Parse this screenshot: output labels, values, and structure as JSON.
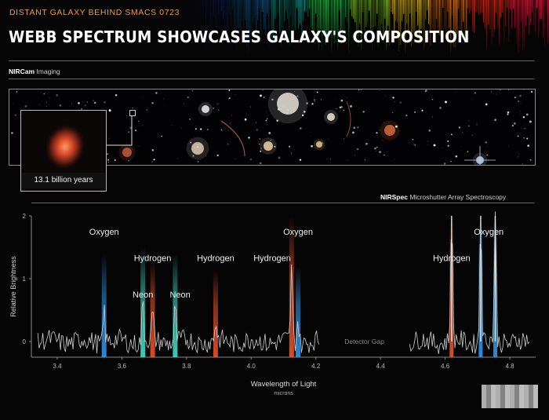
{
  "header": {
    "subtitle": "DISTANT GALAXY BEHIND SMACS 0723",
    "title": "WEBB SPECTRUM SHOWCASES GALAXY'S COMPOSITION"
  },
  "imaging": {
    "label_bold": "NIRCam",
    "label_rest": " Imaging",
    "inset_caption": "13.1 billion years"
  },
  "spectroscopy": {
    "label_bold": "NIRSpec",
    "label_rest": " Microshutter Array Spectroscopy"
  },
  "colors": {
    "oxygen": "#2f8fe0",
    "hydrogen": "#e0502a",
    "neon": "#3fd6c0",
    "header_accent": "#e8a13a"
  },
  "chart_data": {
    "type": "line",
    "title": "",
    "xlabel": "Wavelength of Light",
    "xunit": "microns",
    "ylabel": "Relative Brightness",
    "xlim": [
      3.32,
      4.88
    ],
    "ylim": [
      -0.25,
      2.0
    ],
    "xticks": [
      3.4,
      3.6,
      3.8,
      4.0,
      4.2,
      4.4,
      4.6,
      4.8
    ],
    "xtick_labels": [
      "3.4",
      "3.6",
      "3.8",
      "4.0",
      "4.2",
      "4.4",
      "4.6",
      "4.8"
    ],
    "yticks": [
      0,
      1,
      2
    ],
    "ytick_labels": [
      "0",
      "1",
      "2"
    ],
    "detector_gap": {
      "start": 4.21,
      "end": 4.49,
      "label": "Detector Gap"
    },
    "lines": [
      {
        "element": "Oxygen",
        "x": 3.545,
        "peak": 0.55,
        "color": "#2f8fe0"
      },
      {
        "element": "Neon",
        "x": 3.665,
        "peak": 0.65,
        "color": "#3fd6c0"
      },
      {
        "element": "Hydrogen",
        "x": 3.695,
        "peak": 0.45,
        "color": "#e0502a"
      },
      {
        "element": "Neon",
        "x": 3.765,
        "peak": 0.55,
        "color": "#3fd6c0"
      },
      {
        "element": "Hydrogen",
        "x": 3.89,
        "peak": 0.3,
        "color": "#e0502a"
      },
      {
        "element": "Hydrogen",
        "x": 4.125,
        "peak": 1.15,
        "color": "#e0502a"
      },
      {
        "element": "Oxygen",
        "x": 4.145,
        "peak": 0.35,
        "color": "#2f8fe0"
      },
      {
        "element": "Hydrogen",
        "x": 4.62,
        "peak": 2.0,
        "color": "#e0502a"
      },
      {
        "element": "Oxygen",
        "x": 4.71,
        "peak": 2.0,
        "color": "#2f8fe0"
      },
      {
        "element": "Oxygen",
        "x": 4.755,
        "peak": 2.0,
        "color": "#2f8fe0"
      }
    ],
    "labels": [
      {
        "text": "Oxygen",
        "x": 3.545,
        "y": 1.7
      },
      {
        "text": "Hydrogen",
        "x": 3.695,
        "y": 1.28
      },
      {
        "text": "Neon",
        "x": 3.665,
        "y": 0.7
      },
      {
        "text": "Neon",
        "x": 3.78,
        "y": 0.7
      },
      {
        "text": "Hydrogen",
        "x": 3.89,
        "y": 1.28
      },
      {
        "text": "Hydrogen",
        "x": 4.065,
        "y": 1.28
      },
      {
        "text": "Oxygen",
        "x": 4.145,
        "y": 1.7
      },
      {
        "text": "Hydrogen",
        "x": 4.62,
        "y": 1.28
      },
      {
        "text": "Oxygen",
        "x": 4.735,
        "y": 1.7
      }
    ]
  }
}
